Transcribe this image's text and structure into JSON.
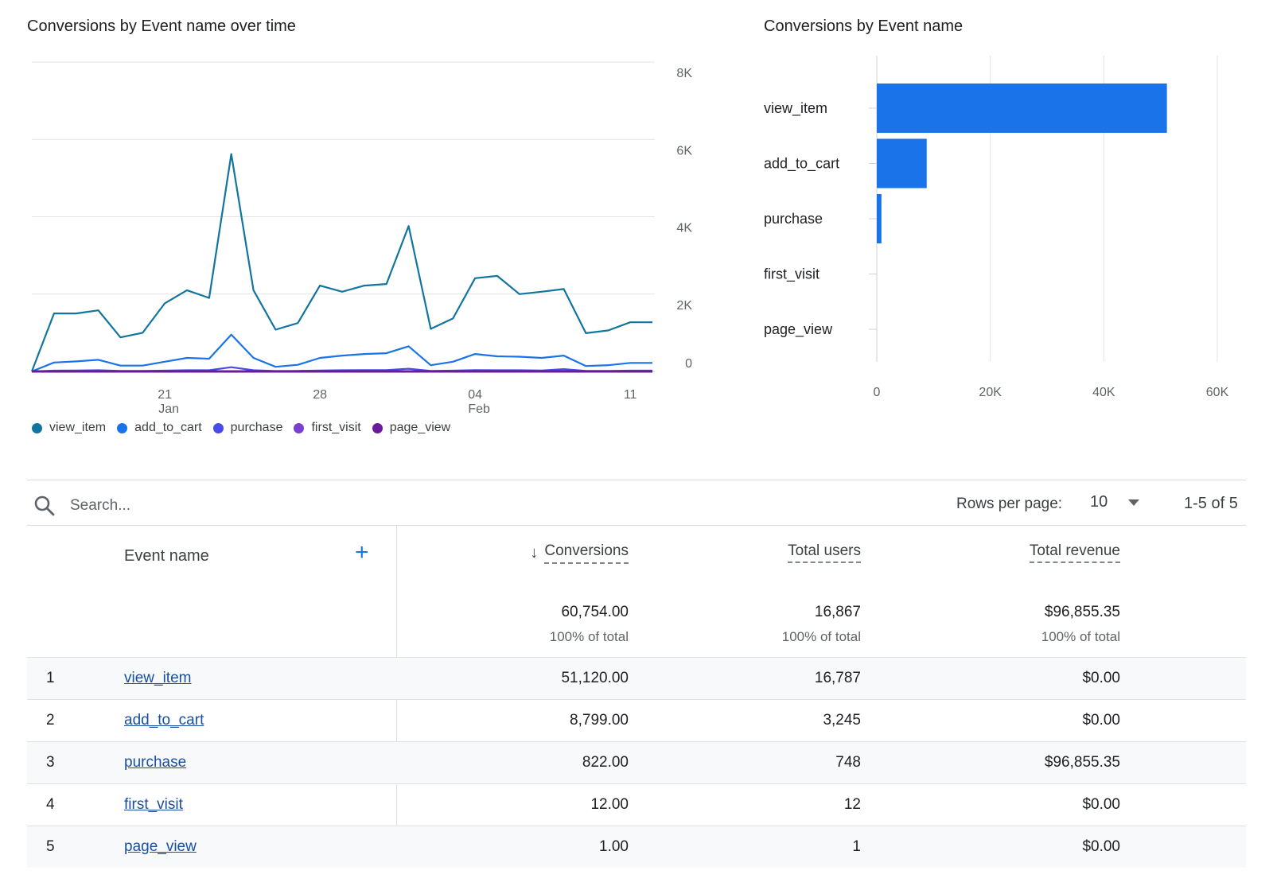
{
  "line_chart": {
    "title": "Conversions by Event name over time",
    "y_ticks": [
      "8K",
      "6K",
      "4K",
      "2K",
      "0"
    ],
    "x_ticks": [
      {
        "label": "21",
        "sub": "Jan"
      },
      {
        "label": "28",
        "sub": ""
      },
      {
        "label": "04",
        "sub": "Feb"
      },
      {
        "label": "11",
        "sub": ""
      }
    ]
  },
  "bar_chart": {
    "title": "Conversions by Event name",
    "x_ticks": [
      "0",
      "20K",
      "40K",
      "60K"
    ]
  },
  "legend": [
    {
      "label": "view_item",
      "color": "#12759f"
    },
    {
      "label": "add_to_cart",
      "color": "#1a73e8"
    },
    {
      "label": "purchase",
      "color": "#4a4ae8"
    },
    {
      "label": "first_visit",
      "color": "#7b3fd0"
    },
    {
      "label": "page_view",
      "color": "#6a1b9a"
    }
  ],
  "chart_data": [
    {
      "type": "line",
      "title": "Conversions by Event name over time",
      "ylim": [
        0,
        8000
      ],
      "x": [
        "Jan 15",
        "Jan 16",
        "Jan 17",
        "Jan 18",
        "Jan 19",
        "Jan 20",
        "Jan 21",
        "Jan 22",
        "Jan 23",
        "Jan 24",
        "Jan 25",
        "Jan 26",
        "Jan 27",
        "Jan 28",
        "Jan 29",
        "Jan 30",
        "Jan 31",
        "Feb 1",
        "Feb 2",
        "Feb 3",
        "Feb 4",
        "Feb 5",
        "Feb 6",
        "Feb 7",
        "Feb 8",
        "Feb 9",
        "Feb 10",
        "Feb 11",
        "Feb 12"
      ],
      "x_tick_labels": [
        "21 Jan",
        "28",
        "04 Feb",
        "11"
      ],
      "y_tick_labels": [
        "0",
        "2K",
        "4K",
        "6K",
        "8K"
      ],
      "series": [
        {
          "name": "view_item",
          "color": "#12759f",
          "values": [
            0,
            1500,
            1500,
            1580,
            880,
            1000,
            1760,
            2100,
            1900,
            5620,
            2100,
            1080,
            1250,
            2220,
            2060,
            2220,
            2260,
            3760,
            1100,
            1370,
            2410,
            2470,
            2000,
            2060,
            2130,
            990,
            1060,
            1270,
            1270
          ]
        },
        {
          "name": "add_to_cart",
          "color": "#1a73e8",
          "values": [
            0,
            230,
            260,
            300,
            150,
            150,
            250,
            350,
            330,
            950,
            350,
            120,
            170,
            350,
            410,
            450,
            470,
            650,
            160,
            250,
            450,
            390,
            380,
            350,
            410,
            140,
            160,
            220,
            220
          ]
        },
        {
          "name": "purchase",
          "color": "#4a4ae8",
          "values": [
            0,
            20,
            25,
            30,
            15,
            15,
            20,
            30,
            30,
            110,
            30,
            10,
            15,
            25,
            30,
            35,
            35,
            70,
            15,
            20,
            35,
            30,
            30,
            25,
            60,
            15,
            15,
            20,
            20
          ]
        },
        {
          "name": "first_visit",
          "color": "#7b3fd0",
          "values": [
            0,
            0,
            0,
            0,
            0,
            0,
            0,
            0,
            0,
            0,
            0,
            0,
            0,
            0,
            0,
            0,
            0,
            0,
            0,
            0,
            0,
            0,
            0,
            0,
            0,
            0,
            0,
            0,
            0
          ]
        },
        {
          "name": "page_view",
          "color": "#6a1b9a",
          "values": [
            0,
            0,
            0,
            0,
            0,
            0,
            0,
            0,
            0,
            0,
            0,
            0,
            0,
            0,
            0,
            0,
            0,
            0,
            0,
            0,
            0,
            0,
            0,
            0,
            0,
            0,
            0,
            0,
            0
          ]
        }
      ]
    },
    {
      "type": "bar",
      "orientation": "horizontal",
      "title": "Conversions by Event name",
      "categories": [
        "view_item",
        "add_to_cart",
        "purchase",
        "first_visit",
        "page_view"
      ],
      "values": [
        51120,
        8799,
        822,
        12,
        1
      ],
      "xlim": [
        0,
        60000
      ],
      "x_tick_labels": [
        "0",
        "20K",
        "40K",
        "60K"
      ],
      "color": "#1a73e8"
    }
  ],
  "search": {
    "placeholder": "Search..."
  },
  "pagination": {
    "rows_label": "Rows per page:",
    "rows_value": "10",
    "range": "1-5 of 5"
  },
  "table": {
    "headers": {
      "event": "Event name",
      "conversions": "Conversions",
      "users": "Total users",
      "revenue": "Total revenue"
    },
    "totals": {
      "conversions": "60,754.00",
      "conversions_pct": "100% of total",
      "users": "16,867",
      "users_pct": "100% of total",
      "revenue": "$96,855.35",
      "revenue_pct": "100% of total"
    },
    "rows": [
      {
        "index": "1",
        "event": "view_item",
        "conversions": "51,120.00",
        "users": "16,787",
        "revenue": "$0.00"
      },
      {
        "index": "2",
        "event": "add_to_cart",
        "conversions": "8,799.00",
        "users": "3,245",
        "revenue": "$0.00"
      },
      {
        "index": "3",
        "event": "purchase",
        "conversions": "822.00",
        "users": "748",
        "revenue": "$96,855.35"
      },
      {
        "index": "4",
        "event": "first_visit",
        "conversions": "12.00",
        "users": "12",
        "revenue": "$0.00"
      },
      {
        "index": "5",
        "event": "page_view",
        "conversions": "1.00",
        "users": "1",
        "revenue": "$0.00"
      }
    ]
  }
}
